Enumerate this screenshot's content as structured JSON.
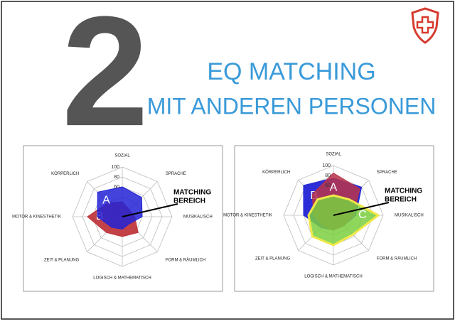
{
  "header": {
    "number": "2",
    "title": [
      "EQ MATCHING",
      "MIT ANDEREN PERSONEN"
    ]
  },
  "chart_data": [
    {
      "type": "radar",
      "categories": [
        "SOZIAL",
        "SPRACHE",
        "MUSIKALISCH",
        "FORM & RÄUMLICH",
        "LOGISCH & MATHEMATISCH",
        "ZEIT & PLANUNG",
        "MOTOR & KINESTHETIK",
        "KÖRPERLICH"
      ],
      "rlim": [
        0,
        100
      ],
      "rticks": [
        60,
        80,
        100
      ],
      "annotation": [
        "MATCHING",
        "BEREICH"
      ],
      "series": [
        {
          "name": "B",
          "color": "#c0383e",
          "values": [
            30,
            20,
            25,
            45,
            40,
            45,
            70,
            40
          ]
        },
        {
          "name": "A",
          "color": "#2323d6",
          "values": [
            60,
            55,
            40,
            20,
            25,
            30,
            50,
            70
          ]
        }
      ]
    },
    {
      "type": "radar",
      "categories": [
        "SOZIAL",
        "SPRACHE",
        "MUSIKALISCH",
        "FORM & RÄUMLICH",
        "LOGISCH & MATHEMATISCH",
        "ZEIT & PLANUNG",
        "MOTOR & KINESTHETIK",
        "KÖRPERLICH"
      ],
      "rlim": [
        0,
        100
      ],
      "rticks": [
        60,
        80,
        100
      ],
      "annotation": [
        "MATCHING",
        "BEREICH"
      ],
      "series": [
        {
          "name": "B",
          "color": "#2323d6",
          "values": [
            75,
            80,
            45,
            30,
            30,
            35,
            60,
            85
          ]
        },
        {
          "name": "A",
          "color": "#b8344a",
          "values": [
            85,
            75,
            40,
            30,
            30,
            30,
            40,
            60
          ]
        },
        {
          "name": "C",
          "color": "#7ad040",
          "values": [
            40,
            45,
            90,
            55,
            60,
            60,
            50,
            45
          ]
        }
      ]
    }
  ]
}
